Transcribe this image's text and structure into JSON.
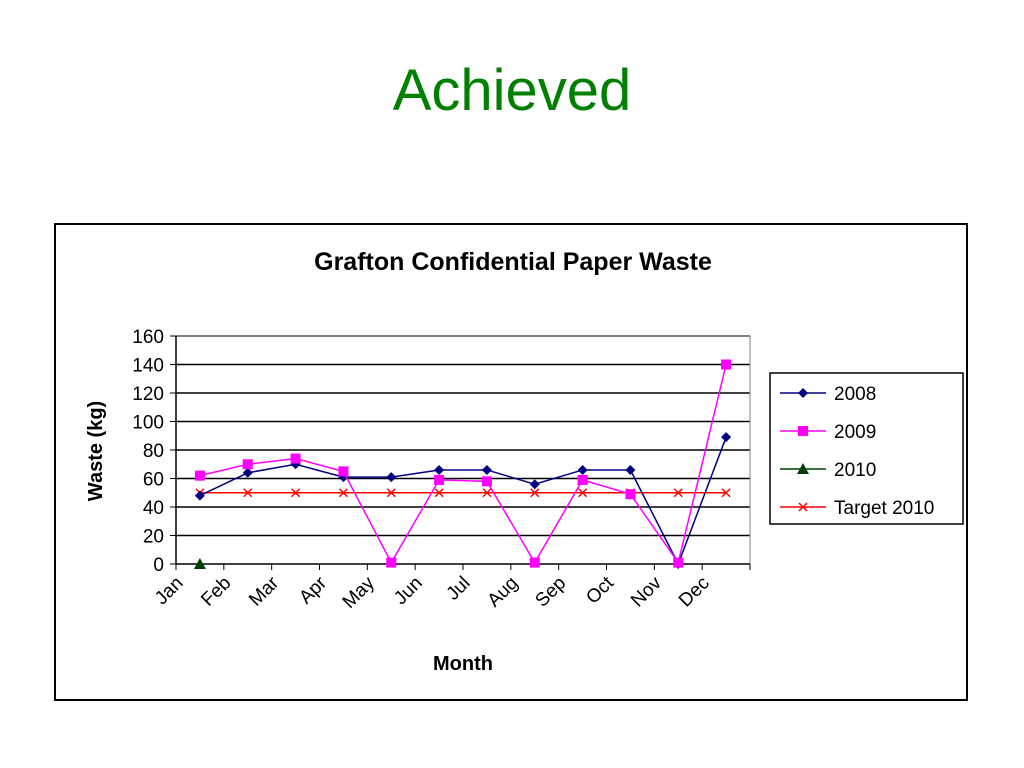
{
  "slide": {
    "title": "Achieved"
  },
  "chart_data": {
    "type": "line",
    "title": "Grafton Confidential Paper Waste",
    "xlabel": "Month",
    "ylabel": "Waste (kg)",
    "ylim": [
      0,
      160
    ],
    "yticks": [
      "0",
      "20",
      "40",
      "60",
      "80",
      "100",
      "120",
      "140",
      "160"
    ],
    "categories": [
      "Jan",
      "Feb",
      "Mar",
      "Apr",
      "May",
      "Jun",
      "Jul",
      "Aug",
      "Sep",
      "Oct",
      "Nov",
      "Dec"
    ],
    "grid": "horizontal",
    "legend_position": "right",
    "series": [
      {
        "name": "2008",
        "color": "#000080",
        "marker": "diamond",
        "values": [
          48,
          64,
          70,
          61,
          61,
          66,
          66,
          56,
          66,
          66,
          0,
          89
        ]
      },
      {
        "name": "2009",
        "color": "#ff00ff",
        "marker": "square",
        "values": [
          62,
          70,
          74,
          65,
          1,
          59,
          58,
          1,
          59,
          49,
          1,
          140
        ]
      },
      {
        "name": "2010",
        "color": "#004000",
        "marker": "triangle",
        "values": [
          0,
          null,
          null,
          null,
          null,
          null,
          null,
          null,
          null,
          null,
          null,
          null
        ]
      },
      {
        "name": "Target 2010",
        "color": "#ff0000",
        "marker": "x",
        "values": [
          50,
          50,
          50,
          50,
          50,
          50,
          50,
          50,
          50,
          50,
          50,
          50
        ]
      }
    ]
  }
}
